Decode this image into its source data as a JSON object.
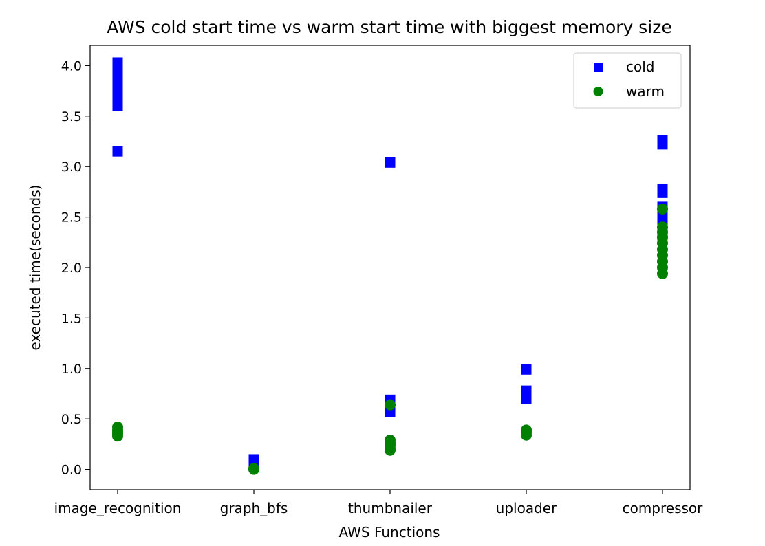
{
  "chart_data": {
    "type": "scatter",
    "title": "AWS cold start time vs warm start time with biggest memory size",
    "xlabel": "AWS Functions",
    "ylabel": "executed time(seconds)",
    "categories": [
      "image_recognition",
      "graph_bfs",
      "thumbnailer",
      "uploader",
      "compressor"
    ],
    "ylim": [
      -0.2,
      4.2
    ],
    "yticks": [
      "0.0",
      "0.5",
      "1.0",
      "1.5",
      "2.0",
      "2.5",
      "3.0",
      "3.5",
      "4.0"
    ],
    "legend_position": "top-right",
    "grid": false,
    "series": [
      {
        "name": "cold",
        "marker": "square",
        "color": "#0000ff",
        "points": [
          {
            "x": "image_recognition",
            "y": 4.03
          },
          {
            "x": "image_recognition",
            "y": 3.98
          },
          {
            "x": "image_recognition",
            "y": 3.93
          },
          {
            "x": "image_recognition",
            "y": 3.88
          },
          {
            "x": "image_recognition",
            "y": 3.83
          },
          {
            "x": "image_recognition",
            "y": 3.78
          },
          {
            "x": "image_recognition",
            "y": 3.73
          },
          {
            "x": "image_recognition",
            "y": 3.68
          },
          {
            "x": "image_recognition",
            "y": 3.63
          },
          {
            "x": "image_recognition",
            "y": 3.6
          },
          {
            "x": "image_recognition",
            "y": 3.15
          },
          {
            "x": "graph_bfs",
            "y": 0.1
          },
          {
            "x": "graph_bfs",
            "y": 0.08
          },
          {
            "x": "graph_bfs",
            "y": 0.06
          },
          {
            "x": "graph_bfs",
            "y": 0.04
          },
          {
            "x": "thumbnailer",
            "y": 3.04
          },
          {
            "x": "thumbnailer",
            "y": 0.69
          },
          {
            "x": "thumbnailer",
            "y": 0.66
          },
          {
            "x": "thumbnailer",
            "y": 0.63
          },
          {
            "x": "thumbnailer",
            "y": 0.6
          },
          {
            "x": "thumbnailer",
            "y": 0.57
          },
          {
            "x": "uploader",
            "y": 0.99
          },
          {
            "x": "uploader",
            "y": 0.78
          },
          {
            "x": "uploader",
            "y": 0.76
          },
          {
            "x": "uploader",
            "y": 0.73
          },
          {
            "x": "uploader",
            "y": 0.7
          },
          {
            "x": "compressor",
            "y": 3.26
          },
          {
            "x": "compressor",
            "y": 3.22
          },
          {
            "x": "compressor",
            "y": 2.78
          },
          {
            "x": "compressor",
            "y": 2.74
          },
          {
            "x": "compressor",
            "y": 2.6
          },
          {
            "x": "compressor",
            "y": 2.52
          },
          {
            "x": "compressor",
            "y": 2.47
          },
          {
            "x": "compressor",
            "y": 2.42
          },
          {
            "x": "compressor",
            "y": 2.37
          },
          {
            "x": "compressor",
            "y": 2.32
          }
        ]
      },
      {
        "name": "warm",
        "marker": "circle",
        "color": "#008000",
        "points": [
          {
            "x": "image_recognition",
            "y": 0.42
          },
          {
            "x": "image_recognition",
            "y": 0.39
          },
          {
            "x": "image_recognition",
            "y": 0.37
          },
          {
            "x": "image_recognition",
            "y": 0.35
          },
          {
            "x": "image_recognition",
            "y": 0.33
          },
          {
            "x": "graph_bfs",
            "y": 0.01
          },
          {
            "x": "graph_bfs",
            "y": 0.0
          },
          {
            "x": "thumbnailer",
            "y": 0.64
          },
          {
            "x": "thumbnailer",
            "y": 0.29
          },
          {
            "x": "thumbnailer",
            "y": 0.26
          },
          {
            "x": "thumbnailer",
            "y": 0.24
          },
          {
            "x": "thumbnailer",
            "y": 0.21
          },
          {
            "x": "thumbnailer",
            "y": 0.19
          },
          {
            "x": "uploader",
            "y": 0.39
          },
          {
            "x": "uploader",
            "y": 0.37
          },
          {
            "x": "uploader",
            "y": 0.34
          },
          {
            "x": "compressor",
            "y": 2.58
          },
          {
            "x": "compressor",
            "y": 2.4
          },
          {
            "x": "compressor",
            "y": 2.35
          },
          {
            "x": "compressor",
            "y": 2.3
          },
          {
            "x": "compressor",
            "y": 2.24
          },
          {
            "x": "compressor",
            "y": 2.18
          },
          {
            "x": "compressor",
            "y": 2.12
          },
          {
            "x": "compressor",
            "y": 2.06
          },
          {
            "x": "compressor",
            "y": 2.0
          },
          {
            "x": "compressor",
            "y": 1.94
          }
        ]
      }
    ]
  }
}
